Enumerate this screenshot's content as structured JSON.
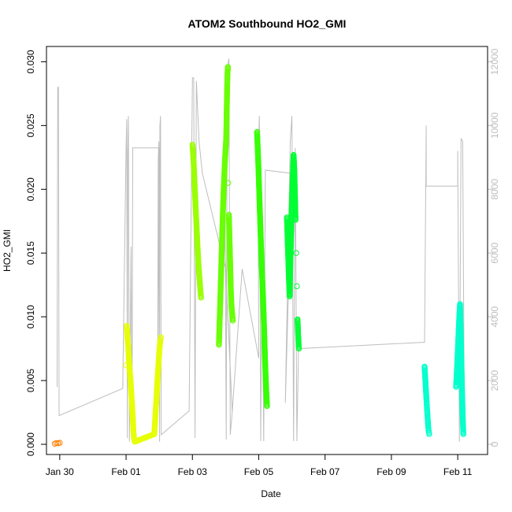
{
  "chart_data": {
    "type": "scatter",
    "title": "ATOM2 Southbound HO2_GMI",
    "xlabel": "Date",
    "ylabel": "HO2_GMI",
    "x_unit": "days_from_jan_28",
    "xlim": [
      1.6,
      14.9
    ],
    "ylim": [
      -0.0008,
      0.0312
    ],
    "y2lim": [
      -320,
      12480
    ],
    "grid": false,
    "legend": "none",
    "x_ticks": [
      {
        "value": 2,
        "label": "Jan 30"
      },
      {
        "value": 4,
        "label": "Feb 01"
      },
      {
        "value": 6,
        "label": "Feb 03"
      },
      {
        "value": 8,
        "label": "Feb 05"
      },
      {
        "value": 10,
        "label": "Feb 07"
      },
      {
        "value": 12,
        "label": "Feb 09"
      },
      {
        "value": 14,
        "label": "Feb 11"
      }
    ],
    "y_ticks": [
      {
        "value": 0.0,
        "label": "0.000"
      },
      {
        "value": 0.005,
        "label": "0.005"
      },
      {
        "value": 0.01,
        "label": "0.010"
      },
      {
        "value": 0.015,
        "label": "0.015"
      },
      {
        "value": 0.02,
        "label": "0.020"
      },
      {
        "value": 0.025,
        "label": "0.025"
      },
      {
        "value": 0.03,
        "label": "0.030"
      }
    ],
    "y2_ticks": [
      {
        "value": 0,
        "label": "0"
      },
      {
        "value": 2000,
        "label": "2000"
      },
      {
        "value": 4000,
        "label": "4000"
      },
      {
        "value": 6000,
        "label": "6000"
      },
      {
        "value": 8000,
        "label": "8000"
      },
      {
        "value": 10000,
        "label": "10000"
      },
      {
        "value": 12000,
        "label": "12000"
      }
    ],
    "colors": {
      "altitude_line": "#bebebe",
      "axis": "#000000",
      "right_axis": "#bebebe"
    },
    "altitude_series": {
      "axis": "right",
      "points": [
        [
          1.92,
          1800
        ],
        [
          1.94,
          11200
        ],
        [
          1.96,
          11200
        ],
        [
          1.98,
          900
        ],
        [
          3.9,
          1750
        ],
        [
          4.0,
          9400
        ],
        [
          4.02,
          10200
        ],
        [
          4.04,
          200
        ],
        [
          4.05,
          9000
        ],
        [
          4.07,
          10300
        ],
        [
          4.1,
          80
        ],
        [
          4.15,
          6200
        ],
        [
          4.18,
          100
        ],
        [
          4.2,
          9300
        ],
        [
          5.0,
          9300
        ],
        [
          4.95,
          1200
        ],
        [
          4.97,
          9000
        ],
        [
          4.99,
          9500
        ],
        [
          5.01,
          80
        ],
        [
          5.02,
          10000
        ],
        [
          5.04,
          10300
        ],
        [
          5.06,
          300
        ],
        [
          5.9,
          1050
        ],
        [
          6.0,
          11500
        ],
        [
          6.04,
          11500
        ],
        [
          6.08,
          200
        ],
        [
          6.12,
          11400
        ],
        [
          6.2,
          9500
        ],
        [
          6.3,
          8500
        ],
        [
          7.0,
          5500
        ],
        [
          7.2,
          1000
        ],
        [
          6.9,
          8000
        ],
        [
          6.98,
          8500
        ],
        [
          7.02,
          150
        ],
        [
          7.05,
          11800
        ],
        [
          7.1,
          12100
        ],
        [
          7.14,
          300
        ],
        [
          7.2,
          1000
        ],
        [
          7.5,
          5500
        ],
        [
          8.0,
          2700
        ],
        [
          7.98,
          9000
        ],
        [
          8.02,
          10300
        ],
        [
          8.06,
          100
        ],
        [
          8.1,
          6000
        ],
        [
          8.15,
          100
        ],
        [
          8.2,
          8600
        ],
        [
          9.0,
          8500
        ],
        [
          8.8,
          1300
        ],
        [
          8.95,
          9500
        ],
        [
          9.0,
          10300
        ],
        [
          9.05,
          100
        ],
        [
          9.1,
          9300
        ],
        [
          9.15,
          100
        ],
        [
          9.2,
          3000
        ],
        [
          13.0,
          3200
        ],
        [
          13.05,
          10000
        ],
        [
          13.05,
          8100
        ],
        [
          14.0,
          8100
        ],
        [
          14.0,
          9200
        ],
        [
          14.05,
          80
        ],
        [
          14.1,
          9600
        ],
        [
          14.15,
          9500
        ],
        [
          14.2,
          600
        ]
      ]
    },
    "series": [
      {
        "color": "#ff7f00",
        "points": [
          [
            1.85,
            5e-05
          ],
          [
            1.9,
            0.0001
          ],
          [
            1.95,
            8e-05
          ],
          [
            2.0,
            0.00012
          ]
        ]
      },
      {
        "color": "#e6ff00",
        "points": [
          [
            4.0,
            0.0062
          ],
          [
            4.02,
            0.0093
          ],
          [
            4.04,
            0.0085
          ],
          [
            4.06,
            0.0078
          ],
          [
            4.08,
            0.007
          ],
          [
            4.1,
            0.0061
          ],
          [
            4.12,
            0.0055
          ],
          [
            4.14,
            0.0048
          ],
          [
            4.16,
            0.0039
          ],
          [
            4.18,
            0.0031
          ],
          [
            4.2,
            0.0022
          ],
          [
            4.22,
            0.0011
          ],
          [
            4.24,
            0.0004
          ],
          [
            4.26,
            0.0002
          ],
          [
            4.85,
            0.0008
          ],
          [
            4.87,
            0.0016
          ],
          [
            4.89,
            0.0025
          ],
          [
            4.91,
            0.0033
          ],
          [
            4.93,
            0.0042
          ],
          [
            4.95,
            0.0051
          ],
          [
            4.97,
            0.006
          ],
          [
            4.99,
            0.0068
          ],
          [
            5.01,
            0.0075
          ],
          [
            5.03,
            0.0081
          ],
          [
            5.05,
            0.0084
          ]
        ]
      },
      {
        "color": "#99ff00",
        "points": [
          [
            6.0,
            0.0235
          ],
          [
            6.02,
            0.0228
          ],
          [
            6.04,
            0.022
          ],
          [
            6.06,
            0.0208
          ],
          [
            6.08,
            0.0196
          ],
          [
            6.1,
            0.0185
          ],
          [
            6.12,
            0.0174
          ],
          [
            6.14,
            0.0163
          ],
          [
            6.16,
            0.0152
          ],
          [
            6.18,
            0.0142
          ],
          [
            6.2,
            0.0135
          ],
          [
            6.22,
            0.0128
          ],
          [
            6.24,
            0.0121
          ],
          [
            6.26,
            0.0115
          ]
        ]
      },
      {
        "color": "#66ff00",
        "points": [
          [
            6.8,
            0.0078
          ],
          [
            6.82,
            0.0095
          ],
          [
            6.84,
            0.0112
          ],
          [
            6.86,
            0.013
          ],
          [
            6.88,
            0.0148
          ],
          [
            6.9,
            0.0165
          ],
          [
            6.92,
            0.0182
          ],
          [
            6.94,
            0.0198
          ],
          [
            6.96,
            0.021
          ],
          [
            6.98,
            0.0222
          ],
          [
            7.0,
            0.0231
          ],
          [
            7.02,
            0.024
          ],
          [
            7.03,
            0.0254
          ],
          [
            7.04,
            0.0268
          ],
          [
            7.05,
            0.0283
          ],
          [
            7.06,
            0.0291
          ],
          [
            7.07,
            0.0296
          ],
          [
            7.08,
            0.0205
          ],
          [
            7.1,
            0.018
          ],
          [
            7.12,
            0.016
          ],
          [
            7.14,
            0.014
          ],
          [
            7.16,
            0.012
          ],
          [
            7.18,
            0.0108
          ],
          [
            7.2,
            0.0102
          ],
          [
            7.22,
            0.0097
          ]
        ]
      },
      {
        "color": "#33ff00",
        "points": [
          [
            7.95,
            0.0245
          ],
          [
            7.97,
            0.0232
          ],
          [
            7.99,
            0.0218
          ],
          [
            8.01,
            0.0202
          ],
          [
            8.03,
            0.0186
          ],
          [
            8.05,
            0.017
          ],
          [
            8.07,
            0.0155
          ],
          [
            8.09,
            0.014
          ],
          [
            8.11,
            0.0128
          ],
          [
            8.13,
            0.0115
          ],
          [
            8.15,
            0.01
          ],
          [
            8.17,
            0.0083
          ],
          [
            8.19,
            0.0066
          ],
          [
            8.21,
            0.0052
          ],
          [
            8.23,
            0.004
          ],
          [
            8.25,
            0.003
          ]
        ]
      },
      {
        "color": "#00ff33",
        "points": [
          [
            8.85,
            0.0178
          ],
          [
            8.87,
            0.0162
          ],
          [
            8.89,
            0.0146
          ],
          [
            8.91,
            0.013
          ],
          [
            8.93,
            0.0116
          ],
          [
            8.95,
            0.0138
          ],
          [
            8.97,
            0.016
          ],
          [
            8.99,
            0.018
          ],
          [
            9.01,
            0.0198
          ],
          [
            9.03,
            0.0212
          ],
          [
            9.05,
            0.0227
          ],
          [
            9.07,
            0.0218
          ],
          [
            9.09,
            0.0198
          ],
          [
            9.11,
            0.0176
          ],
          [
            9.13,
            0.015
          ],
          [
            9.15,
            0.0124
          ],
          [
            9.17,
            0.0098
          ],
          [
            9.19,
            0.0085
          ],
          [
            9.21,
            0.0075
          ]
        ]
      },
      {
        "color": "#00ffcc",
        "points": [
          [
            13.0,
            0.0061
          ],
          [
            13.02,
            0.0052
          ],
          [
            13.04,
            0.0043
          ],
          [
            13.06,
            0.0034
          ],
          [
            13.08,
            0.0026
          ],
          [
            13.1,
            0.0018
          ],
          [
            13.12,
            0.0011
          ],
          [
            13.14,
            0.0008
          ],
          [
            13.95,
            0.0045
          ],
          [
            13.97,
            0.0055
          ],
          [
            13.99,
            0.0066
          ],
          [
            14.01,
            0.0078
          ],
          [
            14.03,
            0.009
          ],
          [
            14.05,
            0.0102
          ],
          [
            14.07,
            0.011
          ],
          [
            14.09,
            0.0088
          ],
          [
            14.11,
            0.0065
          ],
          [
            14.13,
            0.0042
          ],
          [
            14.15,
            0.0022
          ],
          [
            14.17,
            0.0008
          ]
        ]
      }
    ]
  }
}
